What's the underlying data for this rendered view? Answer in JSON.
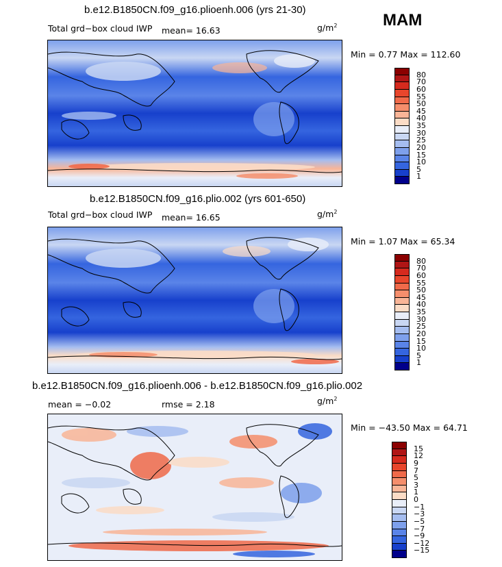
{
  "season": "MAM",
  "panels": [
    {
      "title": "b.e12.B1850CN.f09_g16.plioenh.006 (yrs 21-30)",
      "left_label": "Total grd−box cloud IWP",
      "center_label": "mean=   16.63",
      "units_base": "g/m",
      "units_exp": "2",
      "minmax": "Min =    0.77 Max = 112.60",
      "colorbar_labels": [
        "80",
        "70",
        "60",
        "55",
        "50",
        "45",
        "40",
        "35",
        "30",
        "25",
        "20",
        "15",
        "10",
        "5",
        "1"
      ],
      "colorbar_colors": [
        "#8b0000",
        "#b01515",
        "#d62a1e",
        "#e8462c",
        "#f06a4a",
        "#f58e6c",
        "#f9b597",
        "#fbdcc6",
        "#e9eef9",
        "#c9d7f3",
        "#a5bdf0",
        "#7ea0ec",
        "#5a84e8",
        "#3565df",
        "#1740cc",
        "#00008b"
      ]
    },
    {
      "title": "b.e12.B1850CN.f09_g16.plio.002 (yrs 601-650)",
      "left_label": "Total grd−box cloud IWP",
      "center_label": "mean=   16.65",
      "units_base": "g/m",
      "units_exp": "2",
      "minmax": "Min =    1.07 Max =  65.34",
      "colorbar_labels": [
        "80",
        "70",
        "60",
        "55",
        "50",
        "45",
        "40",
        "35",
        "30",
        "25",
        "20",
        "15",
        "10",
        "5",
        "1"
      ],
      "colorbar_colors": [
        "#8b0000",
        "#b01515",
        "#d62a1e",
        "#e8462c",
        "#f06a4a",
        "#f58e6c",
        "#f9b597",
        "#fbdcc6",
        "#e9eef9",
        "#c9d7f3",
        "#a5bdf0",
        "#7ea0ec",
        "#5a84e8",
        "#3565df",
        "#1740cc",
        "#00008b"
      ]
    },
    {
      "title": "b.e12.B1850CN.f09_g16.plioenh.006 - b.e12.B1850CN.f09_g16.plio.002",
      "left_label": "mean =   −0.02",
      "center_label": "rmse =    2.18",
      "units_base": "g/m",
      "units_exp": "2",
      "minmax": "Min = −43.50 Max =  64.71",
      "colorbar_labels": [
        "15",
        "12",
        "9",
        "7",
        "5",
        "3",
        "1",
        "0",
        "−1",
        "−3",
        "−5",
        "−7",
        "−9",
        "−12",
        "−15"
      ],
      "colorbar_colors": [
        "#8b0000",
        "#b01515",
        "#d62a1e",
        "#e8462c",
        "#f06a4a",
        "#f58e6c",
        "#f9b597",
        "#fbdcc6",
        "#e9eef9",
        "#c9d7f3",
        "#a5bdf0",
        "#7ea0ec",
        "#5a84e8",
        "#3565df",
        "#1740cc",
        "#00008b"
      ]
    }
  ],
  "chart_data": [
    {
      "type": "heatmap",
      "title": "b.e12.B1850CN.f09_g16.plioenh.006 (yrs 21-30)",
      "variable": "Total grd−box cloud IWP",
      "units": "g/m2",
      "season": "MAM",
      "mean": 16.63,
      "min": 0.77,
      "max": 112.6,
      "contour_levels": [
        1,
        5,
        10,
        15,
        20,
        25,
        30,
        35,
        40,
        45,
        50,
        55,
        60,
        70,
        80
      ]
    },
    {
      "type": "heatmap",
      "title": "b.e12.B1850CN.f09_g16.plio.002 (yrs 601-650)",
      "variable": "Total grd−box cloud IWP",
      "units": "g/m2",
      "season": "MAM",
      "mean": 16.65,
      "min": 1.07,
      "max": 65.34,
      "contour_levels": [
        1,
        5,
        10,
        15,
        20,
        25,
        30,
        35,
        40,
        45,
        50,
        55,
        60,
        70,
        80
      ]
    },
    {
      "type": "heatmap",
      "title": "b.e12.B1850CN.f09_g16.plioenh.006 - b.e12.B1850CN.f09_g16.plio.002",
      "units": "g/m2",
      "season": "MAM",
      "mean": -0.02,
      "rmse": 2.18,
      "min": -43.5,
      "max": 64.71,
      "contour_levels": [
        -15,
        -12,
        -9,
        -7,
        -5,
        -3,
        -1,
        0,
        1,
        3,
        5,
        7,
        9,
        12,
        15
      ]
    }
  ]
}
